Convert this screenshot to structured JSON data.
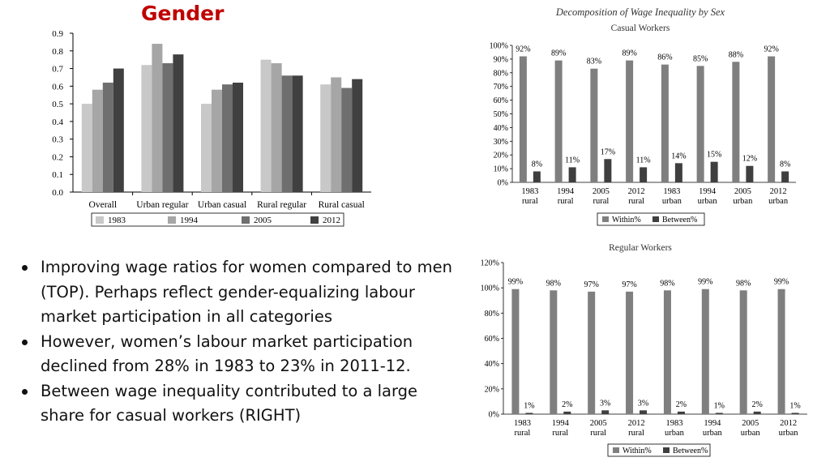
{
  "slide": {
    "title": "Gender",
    "bullets": [
      "Improving wage ratios for women compared to men (TOP). Perhaps reflect gender-equalizing labour market participation in all categories",
      "However, women’s labour market participation declined from 28% in 1983 to 23% in 2011-12.",
      "Between wage inequality contributed to a large share for casual workers (RIGHT)"
    ]
  },
  "colors": {
    "title": "#c00000",
    "s1983": "#c8c8c8",
    "s1994": "#a6a6a6",
    "s2005": "#6f6f6f",
    "s2012": "#404040",
    "within": "#7f7f7f",
    "between": "#3f3f3f"
  },
  "chart_data": [
    {
      "type": "bar",
      "title": "",
      "categories": [
        "Overall",
        "Urban regular",
        "Urban casual",
        "Rural regular",
        "Rural casual"
      ],
      "series": [
        {
          "name": "1983",
          "values": [
            0.5,
            0.72,
            0.5,
            0.75,
            0.61
          ]
        },
        {
          "name": "1994",
          "values": [
            0.58,
            0.84,
            0.58,
            0.73,
            0.65
          ]
        },
        {
          "name": "2005",
          "values": [
            0.62,
            0.73,
            0.61,
            0.66,
            0.59
          ]
        },
        {
          "name": "2012",
          "values": [
            0.7,
            0.78,
            0.62,
            0.66,
            0.64
          ]
        }
      ],
      "yticks": [
        "0.0",
        "0.1",
        "0.2",
        "0.3",
        "0.4",
        "0.5",
        "0.6",
        "0.7",
        "0.8",
        "0.9"
      ],
      "ylim": [
        0,
        0.9
      ],
      "legend_position": "bottom"
    },
    {
      "type": "bar",
      "title": "Decomposition of Wage Inequality by Sex",
      "subtitle": "Casual Workers",
      "categories": [
        [
          "1983",
          "rural"
        ],
        [
          "1994",
          "rural"
        ],
        [
          "2005",
          "rural"
        ],
        [
          "2012",
          "rural"
        ],
        [
          "1983",
          "urban"
        ],
        [
          "1994",
          "urban"
        ],
        [
          "2005",
          "urban"
        ],
        [
          "2012",
          "urban"
        ]
      ],
      "series": [
        {
          "name": "Within%",
          "values": [
            92,
            89,
            83,
            89,
            86,
            85,
            88,
            92
          ],
          "labels": [
            "92%",
            "89%",
            "83%",
            "89%",
            "86%",
            "85%",
            "88%",
            "92%"
          ]
        },
        {
          "name": "Between%",
          "values": [
            8,
            11,
            17,
            11,
            14,
            15,
            12,
            8
          ],
          "labels": [
            "8%",
            "11%",
            "17%",
            "11%",
            "14%",
            "15%",
            "12%",
            "8%"
          ]
        }
      ],
      "yticks": [
        "0%",
        "10%",
        "20%",
        "30%",
        "40%",
        "50%",
        "60%",
        "70%",
        "80%",
        "90%",
        "100%"
      ],
      "ylim": [
        0,
        100
      ],
      "legend_position": "bottom"
    },
    {
      "type": "bar",
      "title": "",
      "subtitle": "Regular Workers",
      "categories": [
        [
          "1983",
          "rural"
        ],
        [
          "1994",
          "rural"
        ],
        [
          "2005",
          "rural"
        ],
        [
          "2012",
          "rural"
        ],
        [
          "1983",
          "urban"
        ],
        [
          "1994",
          "urban"
        ],
        [
          "2005",
          "urban"
        ],
        [
          "2012",
          "urban"
        ]
      ],
      "series": [
        {
          "name": "Within%",
          "values": [
            99,
            98,
            97,
            97,
            98,
            99,
            98,
            99
          ],
          "labels": [
            "99%",
            "98%",
            "97%",
            "97%",
            "98%",
            "99%",
            "98%",
            "99%"
          ]
        },
        {
          "name": "Between%",
          "values": [
            1,
            2,
            3,
            3,
            2,
            1,
            2,
            1
          ],
          "labels": [
            "1%",
            "2%",
            "3%",
            "3%",
            "2%",
            "1%",
            "2%",
            "1%"
          ]
        }
      ],
      "yticks": [
        "0%",
        "20%",
        "40%",
        "60%",
        "80%",
        "100%",
        "120%"
      ],
      "ylim": [
        0,
        120
      ],
      "legend_position": "bottom"
    }
  ]
}
